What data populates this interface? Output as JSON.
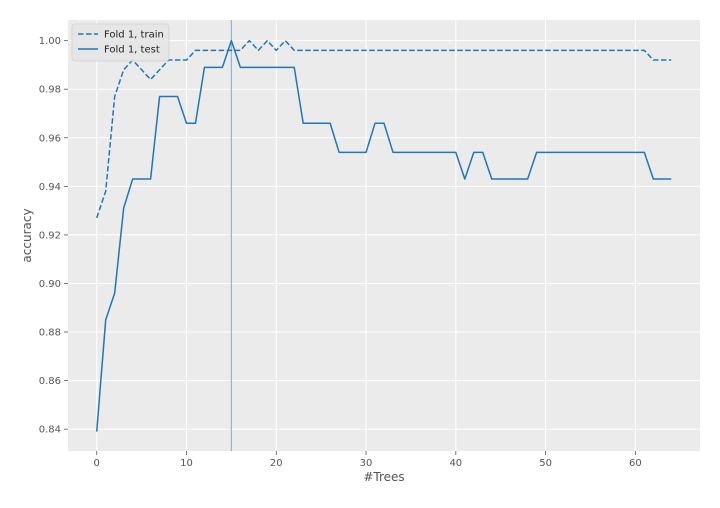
{
  "chart_data": {
    "type": "line",
    "title": "",
    "xlabel": "#Trees",
    "ylabel": "accuracy",
    "xlim": [
      -3.2,
      67.2
    ],
    "ylim": [
      0.831,
      1.0085
    ],
    "x_ticks": [
      0,
      10,
      20,
      30,
      40,
      50,
      60
    ],
    "y_ticks": [
      0.84,
      0.86,
      0.88,
      0.9,
      0.92,
      0.94,
      0.96,
      0.98,
      1.0
    ],
    "y_tick_labels": [
      "0.84",
      "0.86",
      "0.88",
      "0.90",
      "0.92",
      "0.94",
      "0.96",
      "0.98",
      "1.00"
    ],
    "grid": true,
    "legend_position": "top-left",
    "vline_x": 15,
    "colors": {
      "series": "#1f77b4",
      "vline": "#8fb7d4",
      "plot_bg": "#ebebeb",
      "grid": "#ffffff",
      "tick_text": "#555555",
      "label_text": "#555555"
    },
    "x": [
      0,
      1,
      2,
      3,
      4,
      5,
      6,
      7,
      8,
      9,
      10,
      11,
      12,
      13,
      14,
      15,
      16,
      17,
      18,
      19,
      20,
      21,
      22,
      23,
      24,
      25,
      26,
      27,
      28,
      29,
      30,
      31,
      32,
      33,
      34,
      35,
      36,
      37,
      38,
      39,
      40,
      41,
      42,
      43,
      44,
      45,
      46,
      47,
      48,
      49,
      50,
      51,
      52,
      53,
      54,
      55,
      56,
      57,
      58,
      59,
      60,
      61,
      62,
      63,
      64
    ],
    "series": [
      {
        "name": "Fold 1, train",
        "style": "dashed",
        "values": [
          0.927,
          0.938,
          0.977,
          0.988,
          0.992,
          0.988,
          0.984,
          0.988,
          0.992,
          0.992,
          0.992,
          0.996,
          0.996,
          0.996,
          0.996,
          0.996,
          0.996,
          1.0,
          0.996,
          1.0,
          0.996,
          1.0,
          0.996,
          0.996,
          0.996,
          0.996,
          0.996,
          0.996,
          0.996,
          0.996,
          0.996,
          0.996,
          0.996,
          0.996,
          0.996,
          0.996,
          0.996,
          0.996,
          0.996,
          0.996,
          0.996,
          0.996,
          0.996,
          0.996,
          0.996,
          0.996,
          0.996,
          0.996,
          0.996,
          0.996,
          0.996,
          0.996,
          0.996,
          0.996,
          0.996,
          0.996,
          0.996,
          0.996,
          0.996,
          0.996,
          0.996,
          0.996,
          0.992,
          0.992,
          0.992
        ]
      },
      {
        "name": "Fold 1, test",
        "style": "solid",
        "values": [
          0.839,
          0.885,
          0.896,
          0.931,
          0.943,
          0.943,
          0.943,
          0.977,
          0.977,
          0.977,
          0.966,
          0.966,
          0.989,
          0.989,
          0.989,
          1.0,
          0.989,
          0.989,
          0.989,
          0.989,
          0.989,
          0.989,
          0.989,
          0.966,
          0.966,
          0.966,
          0.966,
          0.954,
          0.954,
          0.954,
          0.954,
          0.966,
          0.966,
          0.954,
          0.954,
          0.954,
          0.954,
          0.954,
          0.954,
          0.954,
          0.954,
          0.943,
          0.954,
          0.954,
          0.943,
          0.943,
          0.943,
          0.943,
          0.943,
          0.954,
          0.954,
          0.954,
          0.954,
          0.954,
          0.954,
          0.954,
          0.954,
          0.954,
          0.954,
          0.954,
          0.954,
          0.954,
          0.943,
          0.943,
          0.943
        ]
      }
    ]
  }
}
